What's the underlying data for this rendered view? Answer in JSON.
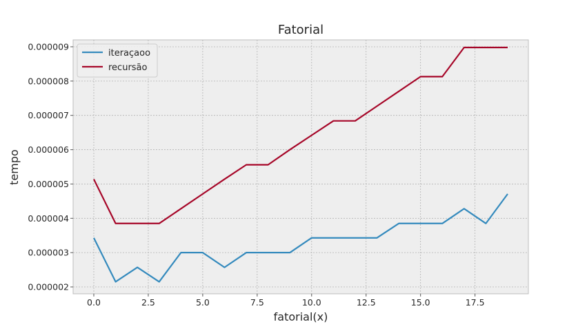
{
  "chart_data": {
    "type": "line",
    "title": "Fatorial",
    "xlabel": "fatorial(x)",
    "ylabel": "tempo",
    "xlim": [
      -0.95,
      19.95
    ],
    "ylim": [
      1.8e-06,
      9.2e-06
    ],
    "xticks": [
      0.0,
      2.5,
      5.0,
      7.5,
      10.0,
      12.5,
      15.0,
      17.5
    ],
    "xtick_labels": [
      "0.0",
      "2.5",
      "5.0",
      "7.5",
      "10.0",
      "12.5",
      "15.0",
      "17.5"
    ],
    "yticks": [
      2e-06,
      3e-06,
      4e-06,
      5e-06,
      6e-06,
      7e-06,
      8e-06,
      9e-06
    ],
    "ytick_labels": [
      "0.000002",
      "0.000003",
      "0.000004",
      "0.000005",
      "0.000006",
      "0.000007",
      "0.000008",
      "0.000009"
    ],
    "grid": true,
    "legend_position": "upper-left",
    "x": [
      0,
      1,
      2,
      3,
      4,
      5,
      6,
      7,
      8,
      9,
      10,
      11,
      12,
      13,
      14,
      15,
      16,
      17,
      18,
      19
    ],
    "series": [
      {
        "name": "iteraçaoo",
        "color": "#348ABD",
        "values": [
          3.43e-06,
          2.15e-06,
          2.57e-06,
          2.15e-06,
          3e-06,
          3e-06,
          2.57e-06,
          3e-06,
          3e-06,
          3e-06,
          3.43e-06,
          3.43e-06,
          3.43e-06,
          3.43e-06,
          3.85e-06,
          3.85e-06,
          3.85e-06,
          4.28e-06,
          3.85e-06,
          4.71e-06
        ]
      },
      {
        "name": "recursão",
        "color": "#A60628",
        "values": [
          5.14e-06,
          3.85e-06,
          3.85e-06,
          3.85e-06,
          4.28e-06,
          4.71e-06,
          5.14e-06,
          5.56e-06,
          5.56e-06,
          6e-06,
          6.42e-06,
          6.84e-06,
          6.84e-06,
          7.27e-06,
          7.7e-06,
          8.13e-06,
          8.13e-06,
          8.98e-06,
          8.98e-06,
          8.98e-06
        ]
      }
    ]
  }
}
